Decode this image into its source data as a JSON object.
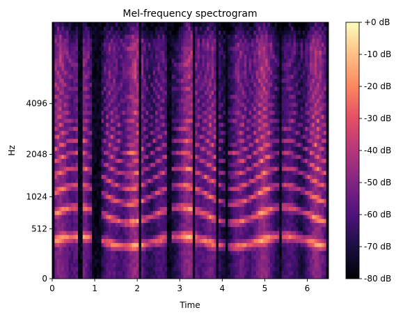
{
  "chart_data": {
    "type": "heatmap",
    "title": "Mel-frequency spectrogram",
    "xlabel": "Time",
    "ylabel": "Hz",
    "x_ticks": [
      0,
      1,
      2,
      3,
      4,
      5,
      6
    ],
    "x_tick_labels": [
      "0",
      "1",
      "2",
      "3",
      "4",
      "5",
      "6"
    ],
    "xlim": [
      0,
      6.5
    ],
    "y_scale": "mel",
    "y_ticks": [
      0,
      512,
      1024,
      2048,
      4096
    ],
    "y_tick_labels": [
      "0",
      "512",
      "1024",
      "2048",
      "4096"
    ],
    "ylim": [
      0,
      11025
    ],
    "colormap": "magma",
    "colorbar": {
      "label_unit": "dB",
      "range": [
        -80,
        0
      ],
      "ticks": [
        0,
        -10,
        -20,
        -30,
        -40,
        -50,
        -60,
        -70,
        -80
      ],
      "tick_labels": [
        "+0 dB",
        "-10 dB",
        "-20 dB",
        "-30 dB",
        "-40 dB",
        "-50 dB",
        "-60 dB",
        "-70 dB",
        "-80 dB"
      ]
    },
    "silence_intervals_s": [
      [
        0.62,
        0.74
      ],
      [
        0.95,
        1.18
      ],
      [
        2.05,
        2.12
      ],
      [
        2.72,
        2.8
      ],
      [
        3.3,
        3.36
      ],
      [
        3.84,
        3.92
      ],
      [
        4.06,
        4.12
      ],
      [
        5.36,
        5.42
      ],
      [
        6.42,
        6.5
      ]
    ],
    "fundamental_band_hz": [
      300,
      420
    ],
    "grid": false
  }
}
